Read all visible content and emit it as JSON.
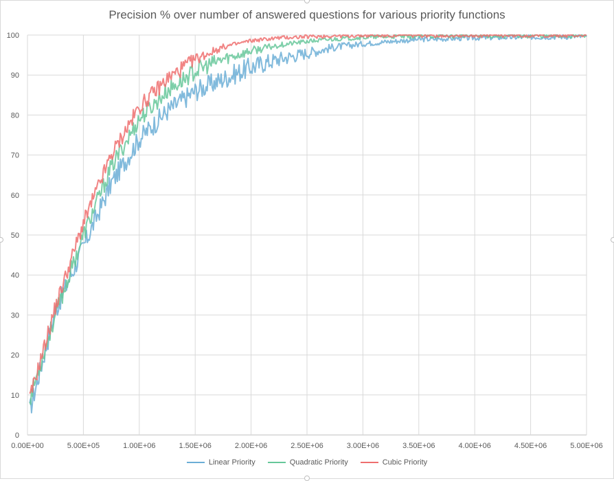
{
  "chart_data": {
    "type": "line",
    "title": "Precision % over number of answered questions for various priority functions",
    "xlabel": "",
    "ylabel": "",
    "xlim": [
      0,
      5000000
    ],
    "ylim": [
      0,
      100
    ],
    "x_ticks": [
      "0.00E+00",
      "5.00E+05",
      "1.00E+06",
      "1.50E+06",
      "2.00E+06",
      "2.50E+06",
      "3.00E+06",
      "3.50E+06",
      "4.00E+06",
      "4.50E+06",
      "5.00E+06"
    ],
    "y_ticks": [
      "0",
      "10",
      "20",
      "30",
      "40",
      "50",
      "60",
      "70",
      "80",
      "90",
      "100"
    ],
    "grid": true,
    "legend_position": "bottom",
    "x": [
      20000,
      250000,
      500000,
      750000,
      1000000,
      1250000,
      1500000,
      1750000,
      2000000,
      2250000,
      2500000,
      2750000,
      3000000,
      3250000,
      3500000,
      3750000,
      4000000,
      4250000,
      4500000,
      4750000,
      5000000
    ],
    "series": [
      {
        "name": "Linear Priority",
        "color": "#6baed6",
        "values": [
          6,
          31,
          47,
          63,
          74,
          81,
          86,
          89,
          92,
          94,
          95.5,
          97,
          97.8,
          98.4,
          98.9,
          99.1,
          99.3,
          99.4,
          99.5,
          99.6,
          99.6
        ]
      },
      {
        "name": "Quadratic Priority",
        "color": "#66c79a",
        "values": [
          9,
          30,
          50,
          67,
          79,
          86,
          91,
          94,
          96,
          97.5,
          98.4,
          99,
          99.4,
          99.6,
          99.7,
          99.8,
          99.8,
          99.8,
          99.8,
          99.8,
          99.8
        ]
      },
      {
        "name": "Cubic Priority",
        "color": "#ee6e6e",
        "values": [
          9,
          32,
          53,
          70,
          82,
          89,
          94,
          97,
          98.6,
          99.3,
          99.6,
          99.8,
          99.9,
          99.9,
          99.9,
          99.9,
          99.9,
          99.9,
          99.9,
          99.9,
          99.9
        ]
      }
    ]
  }
}
